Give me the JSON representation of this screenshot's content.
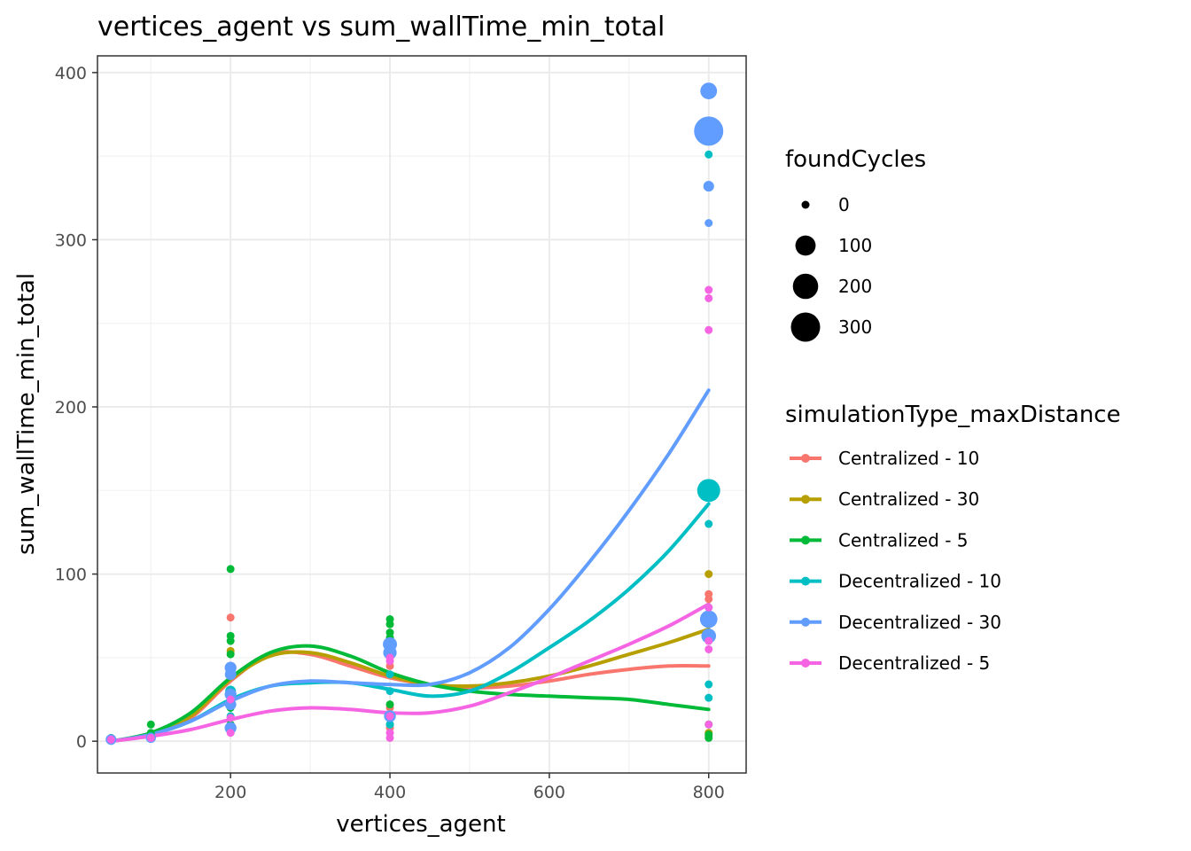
{
  "chart_data": {
    "type": "scatter",
    "title": "vertices_agent  vs  sum_wallTime_min_total",
    "xlabel": "vertices_agent",
    "ylabel": "sum_wallTime_min_total",
    "xlim": [
      33,
      847
    ],
    "ylim": [
      -19,
      410
    ],
    "x_ticks": [
      200,
      400,
      600,
      800
    ],
    "y_ticks": [
      0,
      100,
      200,
      300,
      400
    ],
    "grid": true,
    "size_legend": {
      "title": "foundCycles",
      "entries": [
        {
          "label": "0",
          "value": 0
        },
        {
          "label": "100",
          "value": 100
        },
        {
          "label": "200",
          "value": 200
        },
        {
          "label": "300",
          "value": 300
        }
      ]
    },
    "color_legend": {
      "title": "simulationType_maxDistance",
      "placement": "right"
    },
    "series": [
      {
        "name": "Centralized - 10",
        "color": "#F8766D",
        "points": [
          [
            50,
            1,
            0
          ],
          [
            100,
            3,
            0
          ],
          [
            200,
            74,
            0
          ],
          [
            200,
            40,
            0
          ],
          [
            200,
            8,
            0
          ],
          [
            400,
            45,
            0
          ],
          [
            400,
            20,
            0
          ],
          [
            400,
            8,
            0
          ],
          [
            800,
            88,
            0
          ],
          [
            800,
            85,
            0
          ],
          [
            800,
            60,
            0
          ],
          [
            800,
            3,
            0
          ]
        ],
        "smooth": [
          [
            50,
            0
          ],
          [
            100,
            4
          ],
          [
            150,
            14
          ],
          [
            200,
            36
          ],
          [
            250,
            52
          ],
          [
            300,
            52
          ],
          [
            350,
            45
          ],
          [
            400,
            38
          ],
          [
            450,
            34
          ],
          [
            500,
            32
          ],
          [
            550,
            33
          ],
          [
            600,
            36
          ],
          [
            650,
            40
          ],
          [
            700,
            43
          ],
          [
            750,
            45
          ],
          [
            800,
            45
          ]
        ]
      },
      {
        "name": "Centralized - 30",
        "color": "#B79F00",
        "points": [
          [
            50,
            1,
            0
          ],
          [
            100,
            4,
            0
          ],
          [
            200,
            54,
            0
          ],
          [
            200,
            30,
            0
          ],
          [
            200,
            10,
            0
          ],
          [
            400,
            55,
            0
          ],
          [
            400,
            15,
            0
          ],
          [
            800,
            100,
            0
          ],
          [
            800,
            70,
            0
          ],
          [
            800,
            65,
            0
          ],
          [
            800,
            5,
            0
          ]
        ],
        "smooth": [
          [
            50,
            0
          ],
          [
            100,
            4
          ],
          [
            150,
            15
          ],
          [
            200,
            37
          ],
          [
            250,
            51
          ],
          [
            300,
            53
          ],
          [
            350,
            47
          ],
          [
            400,
            39
          ],
          [
            450,
            34
          ],
          [
            500,
            33
          ],
          [
            550,
            35
          ],
          [
            600,
            39
          ],
          [
            650,
            45
          ],
          [
            700,
            52
          ],
          [
            750,
            59
          ],
          [
            800,
            67
          ]
        ]
      },
      {
        "name": "Centralized - 5",
        "color": "#00BA38",
        "points": [
          [
            50,
            2,
            0
          ],
          [
            100,
            10,
            0
          ],
          [
            100,
            5,
            0
          ],
          [
            200,
            103,
            0
          ],
          [
            200,
            63,
            0
          ],
          [
            200,
            60,
            0
          ],
          [
            200,
            52,
            0
          ],
          [
            200,
            20,
            0
          ],
          [
            200,
            10,
            0
          ],
          [
            400,
            73,
            0
          ],
          [
            400,
            70,
            0
          ],
          [
            400,
            65,
            0
          ],
          [
            400,
            62,
            0
          ],
          [
            400,
            22,
            0
          ],
          [
            400,
            10,
            0
          ],
          [
            800,
            10,
            0
          ],
          [
            800,
            4,
            0
          ],
          [
            800,
            2,
            0
          ]
        ],
        "smooth": [
          [
            50,
            0
          ],
          [
            100,
            5
          ],
          [
            150,
            17
          ],
          [
            200,
            38
          ],
          [
            250,
            53
          ],
          [
            300,
            57
          ],
          [
            350,
            51
          ],
          [
            400,
            41
          ],
          [
            450,
            34
          ],
          [
            500,
            30
          ],
          [
            550,
            28
          ],
          [
            600,
            27
          ],
          [
            650,
            26
          ],
          [
            700,
            25
          ],
          [
            750,
            22
          ],
          [
            800,
            19
          ]
        ]
      },
      {
        "name": "Decentralized - 10",
        "color": "#00BFC4",
        "points": [
          [
            50,
            1,
            0
          ],
          [
            100,
            3,
            0
          ],
          [
            200,
            30,
            5
          ],
          [
            200,
            15,
            0
          ],
          [
            400,
            40,
            0
          ],
          [
            400,
            30,
            0
          ],
          [
            400,
            10,
            0
          ],
          [
            800,
            351,
            0
          ],
          [
            800,
            150,
            150
          ],
          [
            800,
            130,
            0
          ],
          [
            800,
            80,
            0
          ],
          [
            800,
            34,
            0
          ],
          [
            800,
            26,
            0
          ]
        ],
        "smooth": [
          [
            50,
            0
          ],
          [
            100,
            4
          ],
          [
            150,
            12
          ],
          [
            200,
            25
          ],
          [
            250,
            33
          ],
          [
            300,
            35
          ],
          [
            350,
            35
          ],
          [
            400,
            31
          ],
          [
            450,
            27
          ],
          [
            500,
            30
          ],
          [
            550,
            41
          ],
          [
            600,
            56
          ],
          [
            650,
            72
          ],
          [
            700,
            91
          ],
          [
            750,
            114
          ],
          [
            800,
            142
          ]
        ]
      },
      {
        "name": "Decentralized - 30",
        "color": "#619CFF",
        "points": [
          [
            50,
            1,
            5
          ],
          [
            100,
            2,
            3
          ],
          [
            200,
            44,
            10
          ],
          [
            200,
            40,
            8
          ],
          [
            200,
            28,
            10
          ],
          [
            200,
            22,
            8
          ],
          [
            200,
            8,
            10
          ],
          [
            400,
            58,
            25
          ],
          [
            400,
            53,
            20
          ],
          [
            400,
            15,
            10
          ],
          [
            800,
            389,
            50
          ],
          [
            800,
            365,
            300
          ],
          [
            800,
            332,
            5
          ],
          [
            800,
            310,
            0
          ],
          [
            800,
            73,
            60
          ],
          [
            800,
            63,
            30
          ]
        ],
        "smooth": [
          [
            50,
            0
          ],
          [
            100,
            4
          ],
          [
            150,
            12
          ],
          [
            200,
            24
          ],
          [
            250,
            33
          ],
          [
            300,
            36
          ],
          [
            350,
            35
          ],
          [
            400,
            34
          ],
          [
            450,
            34
          ],
          [
            500,
            41
          ],
          [
            550,
            56
          ],
          [
            600,
            79
          ],
          [
            650,
            107
          ],
          [
            700,
            138
          ],
          [
            750,
            172
          ],
          [
            800,
            210
          ]
        ]
      },
      {
        "name": "Decentralized - 5",
        "color": "#F564E3",
        "points": [
          [
            50,
            1,
            0
          ],
          [
            100,
            2,
            0
          ],
          [
            200,
            25,
            0
          ],
          [
            200,
            14,
            0
          ],
          [
            200,
            5,
            0
          ],
          [
            400,
            50,
            0
          ],
          [
            400,
            48,
            0
          ],
          [
            400,
            15,
            0
          ],
          [
            400,
            5,
            0
          ],
          [
            400,
            2,
            0
          ],
          [
            800,
            270,
            0
          ],
          [
            800,
            265,
            0
          ],
          [
            800,
            246,
            0
          ],
          [
            800,
            80,
            0
          ],
          [
            800,
            60,
            0
          ],
          [
            800,
            55,
            0
          ],
          [
            800,
            10,
            0
          ]
        ],
        "smooth": [
          [
            50,
            0
          ],
          [
            100,
            3
          ],
          [
            150,
            7
          ],
          [
            200,
            13
          ],
          [
            250,
            18
          ],
          [
            300,
            20
          ],
          [
            350,
            19
          ],
          [
            400,
            17
          ],
          [
            450,
            17
          ],
          [
            500,
            21
          ],
          [
            550,
            29
          ],
          [
            600,
            38
          ],
          [
            650,
            48
          ],
          [
            700,
            58
          ],
          [
            750,
            69
          ],
          [
            800,
            82
          ]
        ]
      }
    ]
  }
}
